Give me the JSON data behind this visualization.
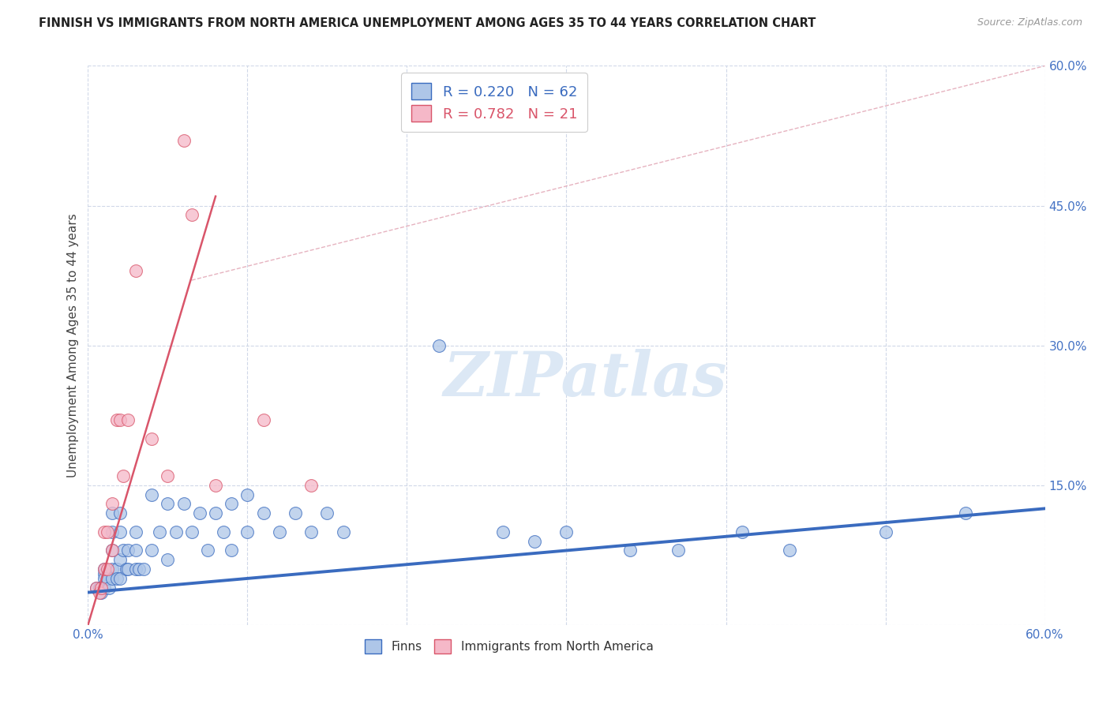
{
  "title": "FINNISH VS IMMIGRANTS FROM NORTH AMERICA UNEMPLOYMENT AMONG AGES 35 TO 44 YEARS CORRELATION CHART",
  "source": "Source: ZipAtlas.com",
  "ylabel": "Unemployment Among Ages 35 to 44 years",
  "xlim": [
    0,
    0.6
  ],
  "ylim": [
    0,
    0.6
  ],
  "r_finns": 0.22,
  "n_finns": 62,
  "r_immigrants": 0.782,
  "n_immigrants": 21,
  "color_finns": "#aec6e8",
  "color_immigrants": "#f5b8c8",
  "color_finns_line": "#3a6bbf",
  "color_immigrants_line": "#d9556a",
  "color_reference_line": "#e0a0b0",
  "watermark_text": "ZIPatlas",
  "watermark_color": "#dce8f5",
  "finns_x": [
    0.005,
    0.007,
    0.008,
    0.01,
    0.01,
    0.01,
    0.01,
    0.012,
    0.012,
    0.013,
    0.015,
    0.015,
    0.015,
    0.015,
    0.015,
    0.018,
    0.018,
    0.02,
    0.02,
    0.02,
    0.02,
    0.022,
    0.024,
    0.025,
    0.025,
    0.03,
    0.03,
    0.03,
    0.032,
    0.035,
    0.04,
    0.04,
    0.045,
    0.05,
    0.05,
    0.055,
    0.06,
    0.065,
    0.07,
    0.075,
    0.08,
    0.085,
    0.09,
    0.09,
    0.1,
    0.1,
    0.11,
    0.12,
    0.13,
    0.14,
    0.15,
    0.16,
    0.22,
    0.26,
    0.28,
    0.3,
    0.34,
    0.37,
    0.41,
    0.44,
    0.5,
    0.55
  ],
  "finns_y": [
    0.04,
    0.04,
    0.035,
    0.06,
    0.055,
    0.05,
    0.04,
    0.05,
    0.05,
    0.04,
    0.12,
    0.1,
    0.08,
    0.06,
    0.05,
    0.06,
    0.05,
    0.12,
    0.1,
    0.07,
    0.05,
    0.08,
    0.06,
    0.08,
    0.06,
    0.1,
    0.08,
    0.06,
    0.06,
    0.06,
    0.14,
    0.08,
    0.1,
    0.13,
    0.07,
    0.1,
    0.13,
    0.1,
    0.12,
    0.08,
    0.12,
    0.1,
    0.13,
    0.08,
    0.14,
    0.1,
    0.12,
    0.1,
    0.12,
    0.1,
    0.12,
    0.1,
    0.3,
    0.1,
    0.09,
    0.1,
    0.08,
    0.08,
    0.1,
    0.08,
    0.1,
    0.12
  ],
  "immigrants_x": [
    0.005,
    0.007,
    0.008,
    0.01,
    0.01,
    0.012,
    0.012,
    0.015,
    0.015,
    0.018,
    0.02,
    0.022,
    0.025,
    0.03,
    0.04,
    0.05,
    0.06,
    0.065,
    0.08,
    0.11,
    0.14
  ],
  "immigrants_y": [
    0.04,
    0.035,
    0.04,
    0.1,
    0.06,
    0.1,
    0.06,
    0.13,
    0.08,
    0.22,
    0.22,
    0.16,
    0.22,
    0.38,
    0.2,
    0.16,
    0.52,
    0.44,
    0.15,
    0.22,
    0.15
  ],
  "finns_line_x": [
    0.0,
    0.6
  ],
  "finns_line_y": [
    0.035,
    0.125
  ],
  "immigrants_line_x": [
    0.0,
    0.08
  ],
  "immigrants_line_y": [
    0.0,
    0.46
  ],
  "ref_line_x": [
    0.065,
    0.6
  ],
  "ref_line_y": [
    0.37,
    0.6
  ]
}
